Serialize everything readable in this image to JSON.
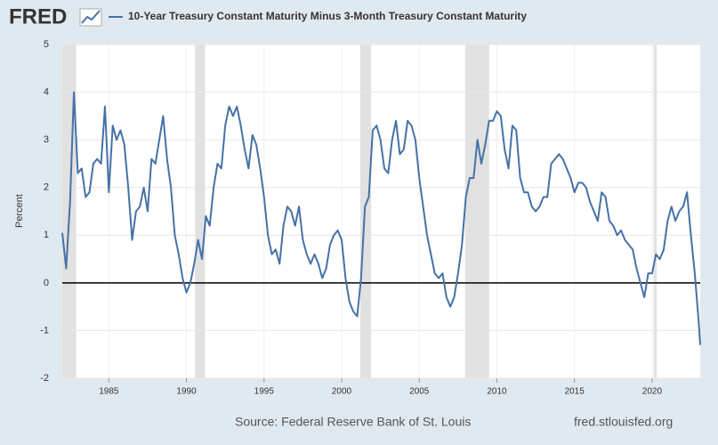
{
  "chart_data": {
    "type": "line",
    "logo": "FRED",
    "y_label": "Percent",
    "source": "Source: Federal Reserve Bank of St. Louis",
    "site": "fred.stlouisfed.org",
    "xlim": [
      1982.0,
      2023.1
    ],
    "xticks": [
      1985,
      1990,
      1995,
      2000,
      2005,
      2010,
      2015,
      2020
    ],
    "ylim": [
      -2,
      5
    ],
    "yticks": [
      -2,
      -1,
      0,
      1,
      2,
      3,
      4,
      5
    ],
    "grid": true,
    "baseline": 0,
    "recessions": [
      [
        1982.0,
        1982.9
      ],
      [
        1990.55,
        1991.2
      ],
      [
        2001.2,
        2001.9
      ],
      [
        2007.95,
        2009.5
      ],
      [
        2020.1,
        2020.3
      ]
    ],
    "recession_color": "#e1e1e1",
    "x": [
      1982.0,
      1982.25,
      1982.5,
      1982.75,
      1983.0,
      1983.25,
      1983.5,
      1983.75,
      1984.0,
      1984.25,
      1984.5,
      1984.75,
      1985.0,
      1985.25,
      1985.5,
      1985.75,
      1986.0,
      1986.25,
      1986.5,
      1986.75,
      1987.0,
      1987.25,
      1987.5,
      1987.75,
      1988.0,
      1988.25,
      1988.5,
      1988.75,
      1989.0,
      1989.25,
      1989.5,
      1989.75,
      1990.0,
      1990.25,
      1990.5,
      1990.75,
      1991.0,
      1991.25,
      1991.5,
      1991.75,
      1992.0,
      1992.25,
      1992.5,
      1992.75,
      1993.0,
      1993.25,
      1993.5,
      1993.75,
      1994.0,
      1994.25,
      1994.5,
      1994.75,
      1995.0,
      1995.25,
      1995.5,
      1995.75,
      1996.0,
      1996.25,
      1996.5,
      1996.75,
      1997.0,
      1997.25,
      1997.5,
      1997.75,
      1998.0,
      1998.25,
      1998.5,
      1998.75,
      1999.0,
      1999.25,
      1999.5,
      1999.75,
      2000.0,
      2000.25,
      2000.5,
      2000.75,
      2001.0,
      2001.25,
      2001.5,
      2001.75,
      2002.0,
      2002.25,
      2002.5,
      2002.75,
      2003.0,
      2003.25,
      2003.5,
      2003.75,
      2004.0,
      2004.25,
      2004.5,
      2004.75,
      2005.0,
      2005.25,
      2005.5,
      2005.75,
      2006.0,
      2006.25,
      2006.5,
      2006.75,
      2007.0,
      2007.25,
      2007.5,
      2007.75,
      2008.0,
      2008.25,
      2008.5,
      2008.75,
      2009.0,
      2009.25,
      2009.5,
      2009.75,
      2010.0,
      2010.25,
      2010.5,
      2010.75,
      2011.0,
      2011.25,
      2011.5,
      2011.75,
      2012.0,
      2012.25,
      2012.5,
      2012.75,
      2013.0,
      2013.25,
      2013.5,
      2013.75,
      2014.0,
      2014.25,
      2014.5,
      2014.75,
      2015.0,
      2015.25,
      2015.5,
      2015.75,
      2016.0,
      2016.25,
      2016.5,
      2016.75,
      2017.0,
      2017.25,
      2017.5,
      2017.75,
      2018.0,
      2018.25,
      2018.5,
      2018.75,
      2019.0,
      2019.25,
      2019.5,
      2019.75,
      2020.0,
      2020.25,
      2020.5,
      2020.75,
      2021.0,
      2021.25,
      2021.5,
      2021.75,
      2022.0,
      2022.25,
      2022.5,
      2022.75,
      2023.0,
      2023.1
    ],
    "series": [
      {
        "name": "10-Year Treasury Constant Maturity Minus 3-Month Treasury Constant Maturity",
        "color": "#4572a7",
        "values": [
          1.05,
          0.3,
          1.7,
          4.0,
          2.3,
          2.4,
          1.8,
          1.9,
          2.5,
          2.6,
          2.5,
          3.7,
          1.9,
          3.3,
          3.0,
          3.2,
          2.9,
          2.0,
          0.9,
          1.5,
          1.6,
          2.0,
          1.5,
          2.6,
          2.5,
          3.0,
          3.5,
          2.6,
          2.0,
          1.0,
          0.6,
          0.1,
          -0.2,
          0.0,
          0.4,
          0.9,
          0.5,
          1.4,
          1.2,
          2.0,
          2.5,
          2.4,
          3.3,
          3.7,
          3.5,
          3.7,
          3.3,
          2.8,
          2.4,
          3.1,
          2.9,
          2.4,
          1.8,
          1.0,
          0.6,
          0.7,
          0.4,
          1.2,
          1.6,
          1.5,
          1.2,
          1.6,
          0.9,
          0.6,
          0.4,
          0.6,
          0.4,
          0.1,
          0.3,
          0.8,
          1.0,
          1.1,
          0.9,
          0.1,
          -0.4,
          -0.6,
          -0.7,
          0.1,
          1.6,
          1.8,
          3.2,
          3.3,
          3.0,
          2.4,
          2.3,
          3.0,
          3.4,
          2.7,
          2.8,
          3.4,
          3.3,
          3.0,
          2.2,
          1.6,
          1.0,
          0.6,
          0.2,
          0.1,
          0.2,
          -0.3,
          -0.5,
          -0.3,
          0.2,
          0.8,
          1.8,
          2.2,
          2.2,
          3.0,
          2.5,
          2.9,
          3.4,
          3.4,
          3.6,
          3.5,
          2.8,
          2.4,
          3.3,
          3.2,
          2.2,
          1.9,
          1.9,
          1.6,
          1.5,
          1.6,
          1.8,
          1.8,
          2.5,
          2.6,
          2.7,
          2.6,
          2.4,
          2.2,
          1.9,
          2.1,
          2.1,
          2.0,
          1.7,
          1.5,
          1.3,
          1.9,
          1.8,
          1.3,
          1.2,
          1.0,
          1.1,
          0.9,
          0.8,
          0.7,
          0.3,
          0.0,
          -0.3,
          0.2,
          0.2,
          0.6,
          0.5,
          0.7,
          1.3,
          1.6,
          1.3,
          1.5,
          1.6,
          1.9,
          1.0,
          0.2,
          -0.8,
          -1.3
        ]
      }
    ]
  }
}
